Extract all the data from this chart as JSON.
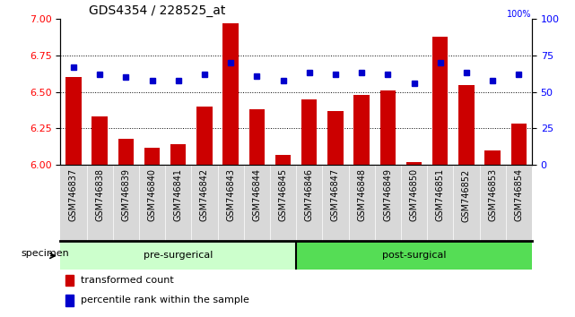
{
  "title": "GDS4354 / 228525_at",
  "samples": [
    "GSM746837",
    "GSM746838",
    "GSM746839",
    "GSM746840",
    "GSM746841",
    "GSM746842",
    "GSM746843",
    "GSM746844",
    "GSM746845",
    "GSM746846",
    "GSM746847",
    "GSM746848",
    "GSM746849",
    "GSM746850",
    "GSM746851",
    "GSM746852",
    "GSM746853",
    "GSM746854"
  ],
  "bar_values": [
    6.6,
    6.33,
    6.18,
    6.12,
    6.14,
    6.4,
    6.97,
    6.38,
    6.07,
    6.45,
    6.37,
    6.48,
    6.51,
    6.02,
    6.88,
    6.55,
    6.1,
    6.28
  ],
  "dot_values": [
    67,
    62,
    60,
    58,
    58,
    62,
    70,
    61,
    58,
    63,
    62,
    63,
    62,
    56,
    70,
    63,
    58,
    62
  ],
  "pre_surgical_count": 9,
  "post_surgical_count": 9,
  "ylim_left": [
    6.0,
    7.0
  ],
  "ylim_right": [
    0,
    100
  ],
  "yticks_left": [
    6.0,
    6.25,
    6.5,
    6.75,
    7.0
  ],
  "yticks_right": [
    0,
    25,
    50,
    75,
    100
  ],
  "bar_color": "#cc0000",
  "dot_color": "#0000cc",
  "bar_bottom": 6.0,
  "pre_surgical_color": "#ccffcc",
  "post_surgical_color": "#55dd55",
  "specimen_label": "specimen",
  "pre_label": "pre-surgerical",
  "post_label": "post-surgical",
  "legend_bar_label": "transformed count",
  "legend_dot_label": "percentile rank within the sample",
  "tick_bg_color": "#d8d8d8",
  "title_fontsize": 10,
  "axis_fontsize": 8,
  "label_fontsize": 7
}
